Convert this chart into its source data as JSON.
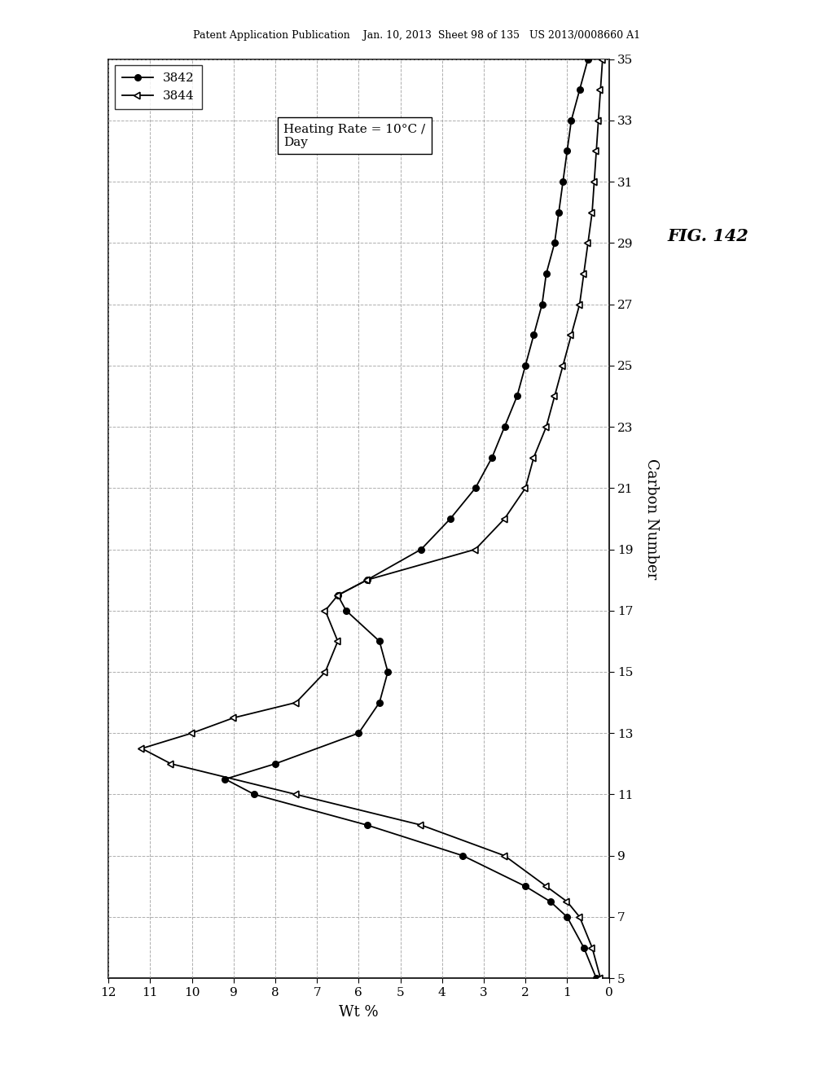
{
  "title": "FIG. 142",
  "header": "Patent Application Publication    Jan. 10, 2013  Sheet 98 of 135   US 2013/0008660 A1",
  "xlabel": "Wt %",
  "ylabel": "Carbon Number",
  "legend_label1": "3842",
  "legend_label2": "3844",
  "annotation": "Heating Rate = 10°C /\nDay",
  "series1_carbon": [
    5,
    6,
    7,
    7.5,
    8,
    9,
    10,
    11,
    11.5,
    12,
    13,
    14,
    15,
    16,
    17,
    17.5,
    18,
    19,
    20,
    21,
    22,
    23,
    24,
    25,
    26,
    27,
    28,
    29,
    30,
    31,
    32,
    33,
    34,
    35
  ],
  "series1_wt": [
    0.3,
    0.6,
    1.0,
    1.4,
    2.0,
    3.5,
    5.8,
    8.5,
    9.2,
    8.0,
    6.0,
    5.5,
    5.3,
    5.5,
    6.3,
    6.5,
    5.8,
    4.5,
    3.8,
    3.2,
    2.8,
    2.5,
    2.2,
    2.0,
    1.8,
    1.6,
    1.5,
    1.3,
    1.2,
    1.1,
    1.0,
    0.9,
    0.7,
    0.5
  ],
  "series2_carbon": [
    5,
    6,
    7,
    7.5,
    8,
    9,
    10,
    11,
    12,
    12.5,
    13,
    13.5,
    14,
    15,
    16,
    17,
    17.5,
    18,
    19,
    20,
    21,
    22,
    23,
    24,
    25,
    26,
    27,
    28,
    29,
    30,
    31,
    32,
    33,
    34,
    35
  ],
  "series2_wt": [
    0.2,
    0.4,
    0.7,
    1.0,
    1.5,
    2.5,
    4.5,
    7.5,
    10.5,
    11.2,
    10.0,
    9.0,
    7.5,
    6.8,
    6.5,
    6.8,
    6.5,
    5.8,
    3.2,
    2.5,
    2.0,
    1.8,
    1.5,
    1.3,
    1.1,
    0.9,
    0.7,
    0.6,
    0.5,
    0.4,
    0.35,
    0.3,
    0.25,
    0.2,
    0.15
  ],
  "xlim": [
    12,
    0
  ],
  "ylim": [
    5,
    35
  ],
  "xticks": [
    12,
    11,
    10,
    9,
    8,
    7,
    6,
    5,
    4,
    3,
    2,
    1,
    0
  ],
  "yticks": [
    5,
    7,
    9,
    11,
    13,
    15,
    17,
    19,
    21,
    23,
    25,
    27,
    29,
    31,
    33,
    35
  ],
  "background_color": "#ffffff",
  "line_color": "#000000",
  "grid_color": "#999999"
}
